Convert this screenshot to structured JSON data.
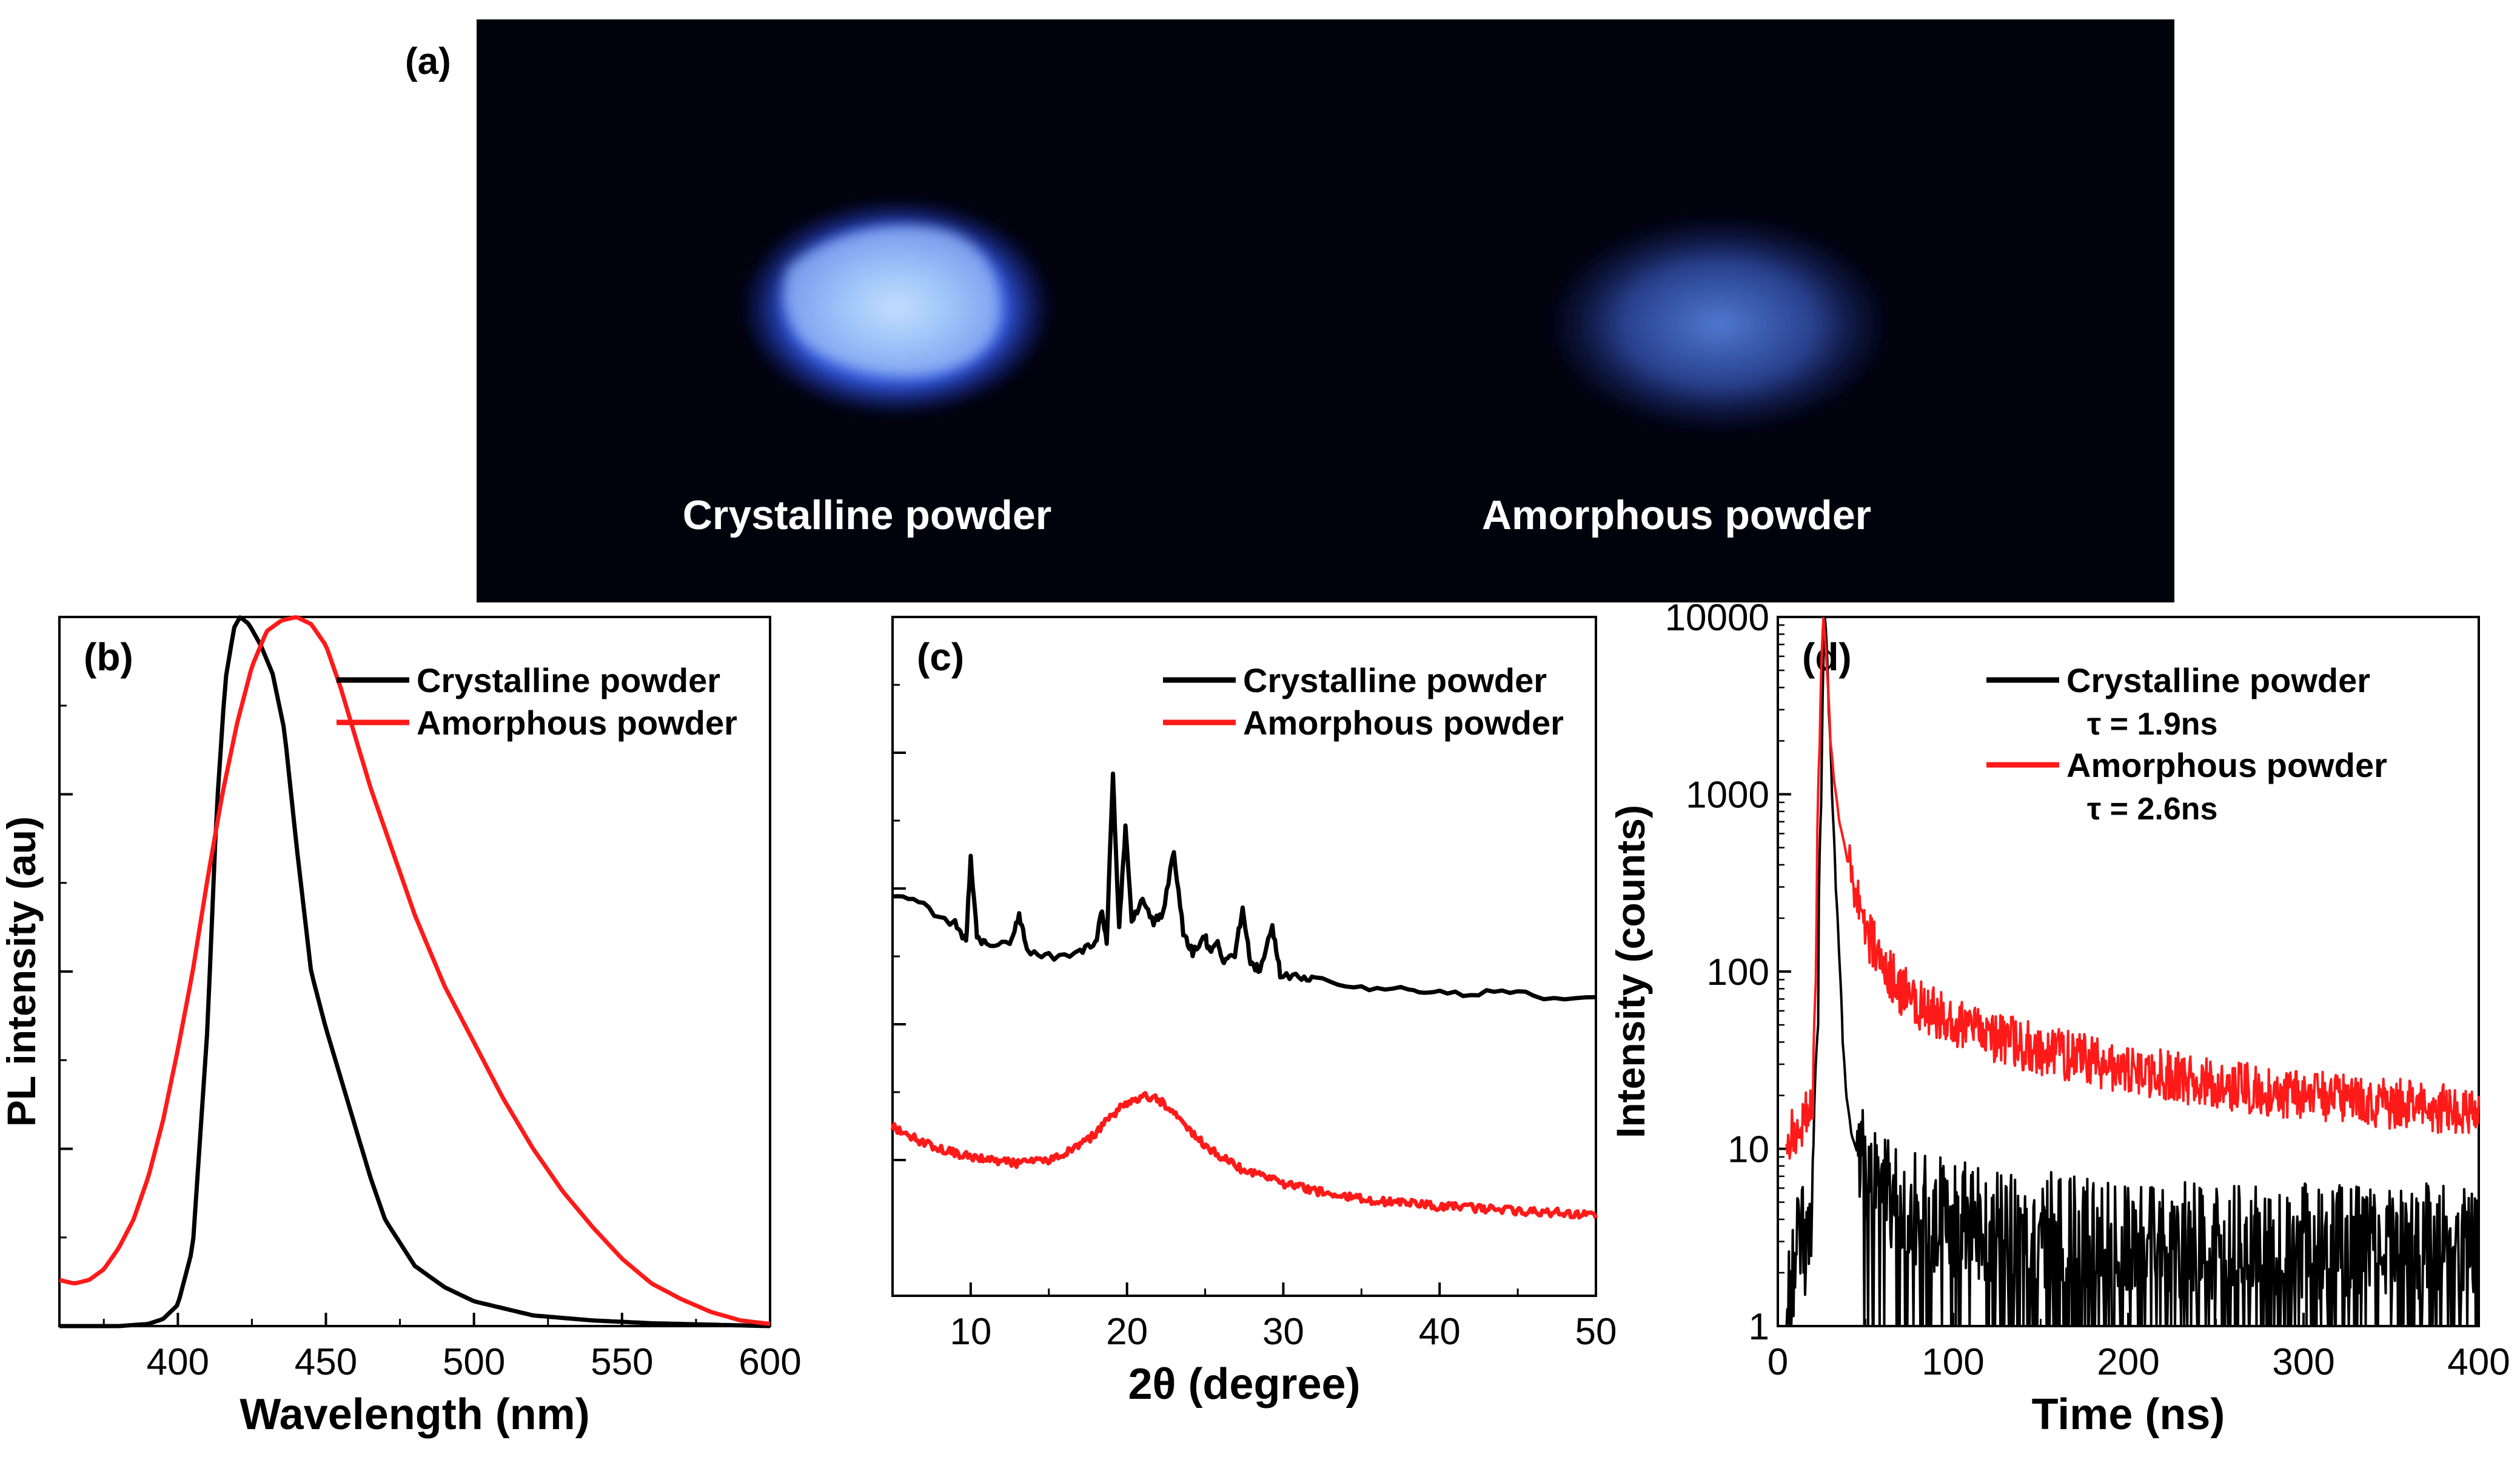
{
  "figure": {
    "panel_a": {
      "label": "(a)",
      "left_caption": "Crystalline powder",
      "right_caption": "Amorphous powder"
    }
  },
  "colors": {
    "crystalline": "#000000",
    "amorphous": "#ff1a1a",
    "photo_background": "#02020d",
    "glow_crystalline": "#4f8cff",
    "glow_amorphous": "#3f6fe6"
  },
  "chart_data": [
    {
      "id": "b",
      "label": "(b)",
      "type": "line",
      "title": "",
      "xlabel": "Wavelength (nm)",
      "ylabel": "PL intensity (au)",
      "xlim": [
        360,
        600
      ],
      "ylim": [
        0,
        1.0
      ],
      "xticks": [
        400,
        450,
        500,
        550,
        600
      ],
      "xticklabels": [
        "400",
        "450",
        "500",
        "550",
        "600"
      ],
      "yticks": [
        0,
        0.25,
        0.5,
        0.75,
        1.0
      ],
      "yticklabels": [
        "",
        "",
        "",
        "",
        ""
      ],
      "legend": "top-right",
      "grid": false,
      "series": [
        {
          "name": "Crystalline powder",
          "color": "#000000",
          "x": [
            360,
            380,
            390,
            395,
            400,
            405,
            410,
            413,
            416,
            419,
            421,
            424,
            428,
            432,
            436,
            440,
            445,
            450,
            455,
            460,
            465,
            470,
            480,
            490,
            500,
            520,
            540,
            560,
            580,
            600
          ],
          "y": [
            0.0,
            0.0,
            0.003,
            0.01,
            0.03,
            0.11,
            0.42,
            0.72,
            0.91,
            0.985,
            1.0,
            0.99,
            0.96,
            0.92,
            0.84,
            0.68,
            0.5,
            0.42,
            0.35,
            0.28,
            0.21,
            0.15,
            0.085,
            0.055,
            0.035,
            0.015,
            0.008,
            0.004,
            0.002,
            0.0
          ]
        },
        {
          "name": "Amorphous powder",
          "color": "#ff1a1a",
          "x": [
            360,
            365,
            370,
            375,
            380,
            385,
            390,
            395,
            400,
            405,
            410,
            415,
            420,
            425,
            430,
            435,
            440,
            445,
            450,
            455,
            460,
            465,
            470,
            480,
            490,
            500,
            510,
            520,
            530,
            540,
            550,
            560,
            570,
            580,
            590,
            600
          ],
          "y": [
            0.065,
            0.06,
            0.065,
            0.08,
            0.11,
            0.15,
            0.21,
            0.29,
            0.39,
            0.5,
            0.63,
            0.75,
            0.85,
            0.93,
            0.98,
            0.995,
            1.0,
            0.99,
            0.96,
            0.9,
            0.83,
            0.76,
            0.7,
            0.58,
            0.48,
            0.4,
            0.32,
            0.25,
            0.19,
            0.14,
            0.095,
            0.06,
            0.038,
            0.02,
            0.008,
            0.003
          ]
        }
      ]
    },
    {
      "id": "c",
      "label": "(c)",
      "type": "line",
      "title": "",
      "xlabel": "2θ (degree)",
      "ylabel": "",
      "xlim": [
        5,
        50
      ],
      "ylim": [
        0,
        1.0
      ],
      "xticks": [
        10,
        20,
        30,
        40,
        50
      ],
      "xticklabels": [
        "10",
        "20",
        "30",
        "40",
        "50"
      ],
      "yticks": [
        0.2,
        0.4,
        0.6,
        0.8,
        1.0
      ],
      "yticklabels": [
        "",
        "",
        "",
        "",
        ""
      ],
      "legend": "top-right",
      "grid": false,
      "series": [
        {
          "name": "Crystalline powder",
          "color": "#000000",
          "x": [
            5,
            7,
            9,
            9.7,
            10,
            10.4,
            11,
            12.5,
            13.1,
            13.6,
            15,
            17,
            18,
            18.4,
            18.7,
            19.1,
            19.5,
            19.9,
            20.3,
            21,
            21.7,
            22.3,
            23,
            23.6,
            24.2,
            25,
            25.3,
            25.8,
            26.2,
            26.9,
            27.4,
            27.9,
            28.5,
            29.3,
            29.8,
            31,
            32,
            35,
            38,
            40,
            43,
            46,
            50
          ],
          "y": [
            0.593,
            0.573,
            0.548,
            0.52,
            0.647,
            0.53,
            0.515,
            0.52,
            0.56,
            0.51,
            0.5,
            0.505,
            0.52,
            0.57,
            0.52,
            0.768,
            0.54,
            0.69,
            0.55,
            0.585,
            0.55,
            0.565,
            0.655,
            0.535,
            0.505,
            0.53,
            0.505,
            0.52,
            0.49,
            0.5,
            0.573,
            0.49,
            0.48,
            0.545,
            0.475,
            0.47,
            0.465,
            0.455,
            0.45,
            0.448,
            0.445,
            0.443,
            0.44
          ]
        },
        {
          "name": "Amorphous powder",
          "color": "#ff1a1a",
          "x": [
            5,
            7,
            9,
            11,
            13,
            15,
            17,
            18,
            19,
            20,
            21,
            22,
            23,
            24,
            25,
            27,
            30,
            33,
            36,
            40,
            45,
            50
          ],
          "y": [
            0.248,
            0.225,
            0.21,
            0.2,
            0.195,
            0.2,
            0.22,
            0.24,
            0.265,
            0.285,
            0.295,
            0.29,
            0.27,
            0.245,
            0.22,
            0.19,
            0.165,
            0.15,
            0.14,
            0.132,
            0.125,
            0.12
          ]
        }
      ]
    },
    {
      "id": "d",
      "label": "(d)",
      "type": "line",
      "title": "",
      "xlabel": "Time (ns)",
      "ylabel": "Intensity (counts)",
      "yscale": "log",
      "xlim": [
        0,
        400
      ],
      "ylim": [
        1,
        10000
      ],
      "xticks": [
        0,
        100,
        200,
        300,
        400
      ],
      "xticklabels": [
        "0",
        "100",
        "200",
        "300",
        "400"
      ],
      "yticks": [
        1,
        10,
        100,
        1000,
        10000
      ],
      "yticklabels": [
        "1",
        "10",
        "100",
        "1000",
        "10000"
      ],
      "legend": "top-right",
      "grid": false,
      "series": [
        {
          "name": "Crystalline powder",
          "annotation": "τ = 1.9ns",
          "color": "#000000",
          "x": [
            5,
            8,
            12,
            16,
            20,
            23,
            25,
            27,
            29,
            31,
            33,
            35,
            37,
            39,
            42,
            46,
            50,
            60,
            80,
            100,
            150,
            200,
            250,
            300,
            350,
            400
          ],
          "y": [
            1,
            2,
            3,
            3,
            5,
            50,
            1000,
            10000,
            3000,
            900,
            300,
            120,
            40,
            20,
            12,
            9,
            7,
            5.5,
            4.5,
            4,
            3.5,
            3.2,
            3,
            3,
            3,
            3
          ]
        },
        {
          "name": "Amorphous powder",
          "annotation": "τ = 2.6ns",
          "color": "#ff1a1a",
          "x": [
            5,
            8,
            12,
            16,
            20,
            22,
            24,
            26,
            28,
            30,
            32,
            35,
            40,
            45,
            50,
            60,
            70,
            80,
            100,
            120,
            150,
            200,
            250,
            300,
            350,
            400
          ],
          "y": [
            10,
            12,
            14,
            15,
            20,
            100,
            2000,
            10000,
            5000,
            2000,
            1200,
            700,
            400,
            250,
            170,
            110,
            80,
            65,
            52,
            44,
            36,
            28,
            23,
            20,
            18,
            16
          ]
        }
      ]
    }
  ]
}
